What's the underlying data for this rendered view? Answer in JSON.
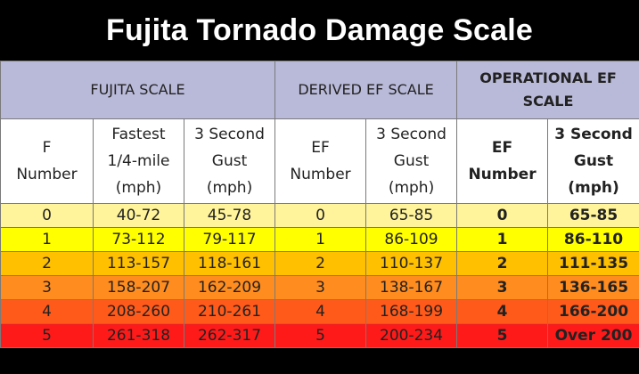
{
  "title": "Fujita Tornado Damage Scale",
  "groups": [
    "FUJITA SCALE",
    "DERIVED EF SCALE",
    "OPERATIONAL EF SCALE"
  ],
  "subheaders": [
    [
      "F",
      "Number"
    ],
    [
      "Fastest",
      "1/4-mile",
      "(mph)"
    ],
    [
      "3 Second",
      "Gust",
      "(mph)"
    ],
    [
      "EF",
      "Number"
    ],
    [
      "3 Second",
      "Gust",
      "(mph)"
    ],
    [
      "EF",
      "Number"
    ],
    [
      "3 Second",
      "Gust",
      "(mph)"
    ]
  ],
  "rows": [
    {
      "color": "#fff49b",
      "cells": [
        "0",
        "40-72",
        "45-78",
        "0",
        "65-85",
        "0",
        "65-85"
      ]
    },
    {
      "color": "#ffff00",
      "cells": [
        "1",
        "73-112",
        "79-117",
        "1",
        "86-109",
        "1",
        "86-110"
      ]
    },
    {
      "color": "#ffc000",
      "cells": [
        "2",
        "113-157",
        "118-161",
        "2",
        "110-137",
        "2",
        "111-135"
      ]
    },
    {
      "color": "#ff8c1e",
      "cells": [
        "3",
        "158-207",
        "162-209",
        "3",
        "138-167",
        "3",
        "136-165"
      ]
    },
    {
      "color": "#ff5a1a",
      "cells": [
        "4",
        "208-260",
        "210-261",
        "4",
        "168-199",
        "4",
        "166-200"
      ]
    },
    {
      "color": "#ff1a1a",
      "cells": [
        "5",
        "261-318",
        "262-317",
        "5",
        "200-234",
        "5",
        "Over 200"
      ]
    }
  ]
}
